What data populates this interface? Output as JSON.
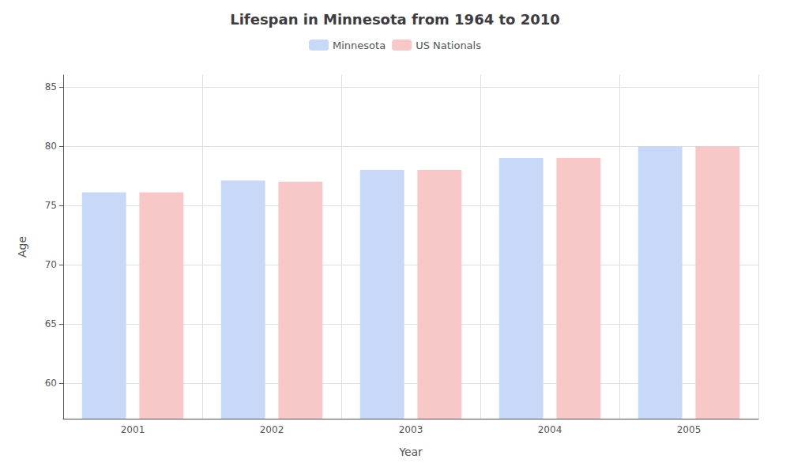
{
  "chart_data": {
    "type": "bar",
    "title": "Lifespan in Minnesota from 1964 to 2010",
    "x_label": "Year",
    "y_label": "Age",
    "categories": [
      "2001",
      "2002",
      "2003",
      "2004",
      "2005"
    ],
    "series": [
      {
        "name": "Minnesota",
        "color": "#c8d8f8",
        "values": [
          76.1,
          77.1,
          78.0,
          79.0,
          80.0
        ]
      },
      {
        "name": "US Nationals",
        "color": "#f8c8c8",
        "values": [
          76.1,
          77.0,
          78.0,
          79.0,
          80.0
        ]
      }
    ],
    "ylim": [
      57,
      86
    ],
    "yticks": [
      60,
      65,
      70,
      75,
      80,
      85
    ],
    "grid": true,
    "legend": "top"
  }
}
